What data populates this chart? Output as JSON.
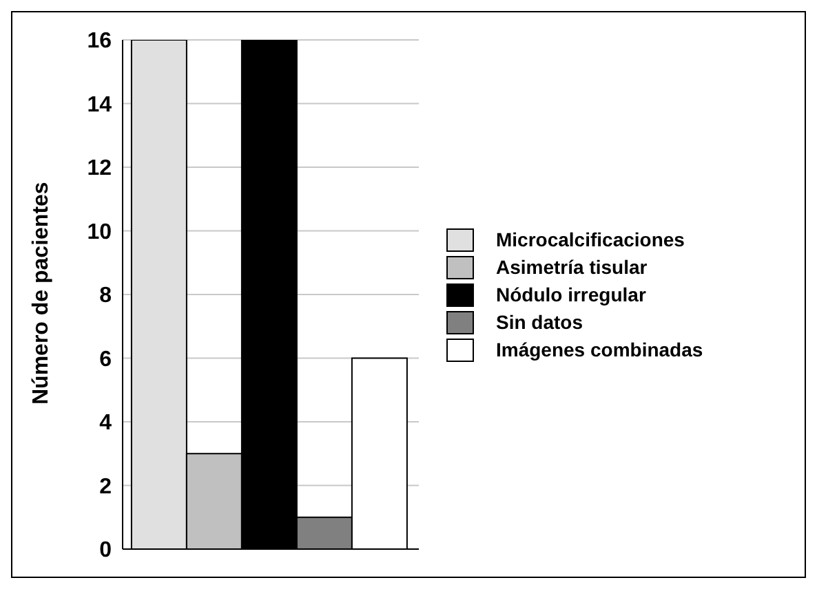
{
  "chart_data": {
    "type": "bar",
    "ylabel": "Número de pacientes",
    "categories": [
      null
    ],
    "series": [
      {
        "name": "Microcalcificaciones",
        "color": "#e0e0e0",
        "values": [
          16
        ]
      },
      {
        "name": "Asimetría tisular",
        "color": "#c0c0c0",
        "values": [
          3
        ]
      },
      {
        "name": "Nódulo irregular",
        "color": "#000000",
        "values": [
          16
        ]
      },
      {
        "name": "Sin datos",
        "color": "#808080",
        "values": [
          1
        ]
      },
      {
        "name": "Imágenes combinadas",
        "color": "#ffffff",
        "values": [
          6
        ]
      }
    ],
    "ylim": [
      0,
      16
    ],
    "yticks": [
      0,
      2,
      4,
      6,
      8,
      10,
      12,
      14,
      16
    ],
    "grid": "y",
    "legend": "right"
  }
}
